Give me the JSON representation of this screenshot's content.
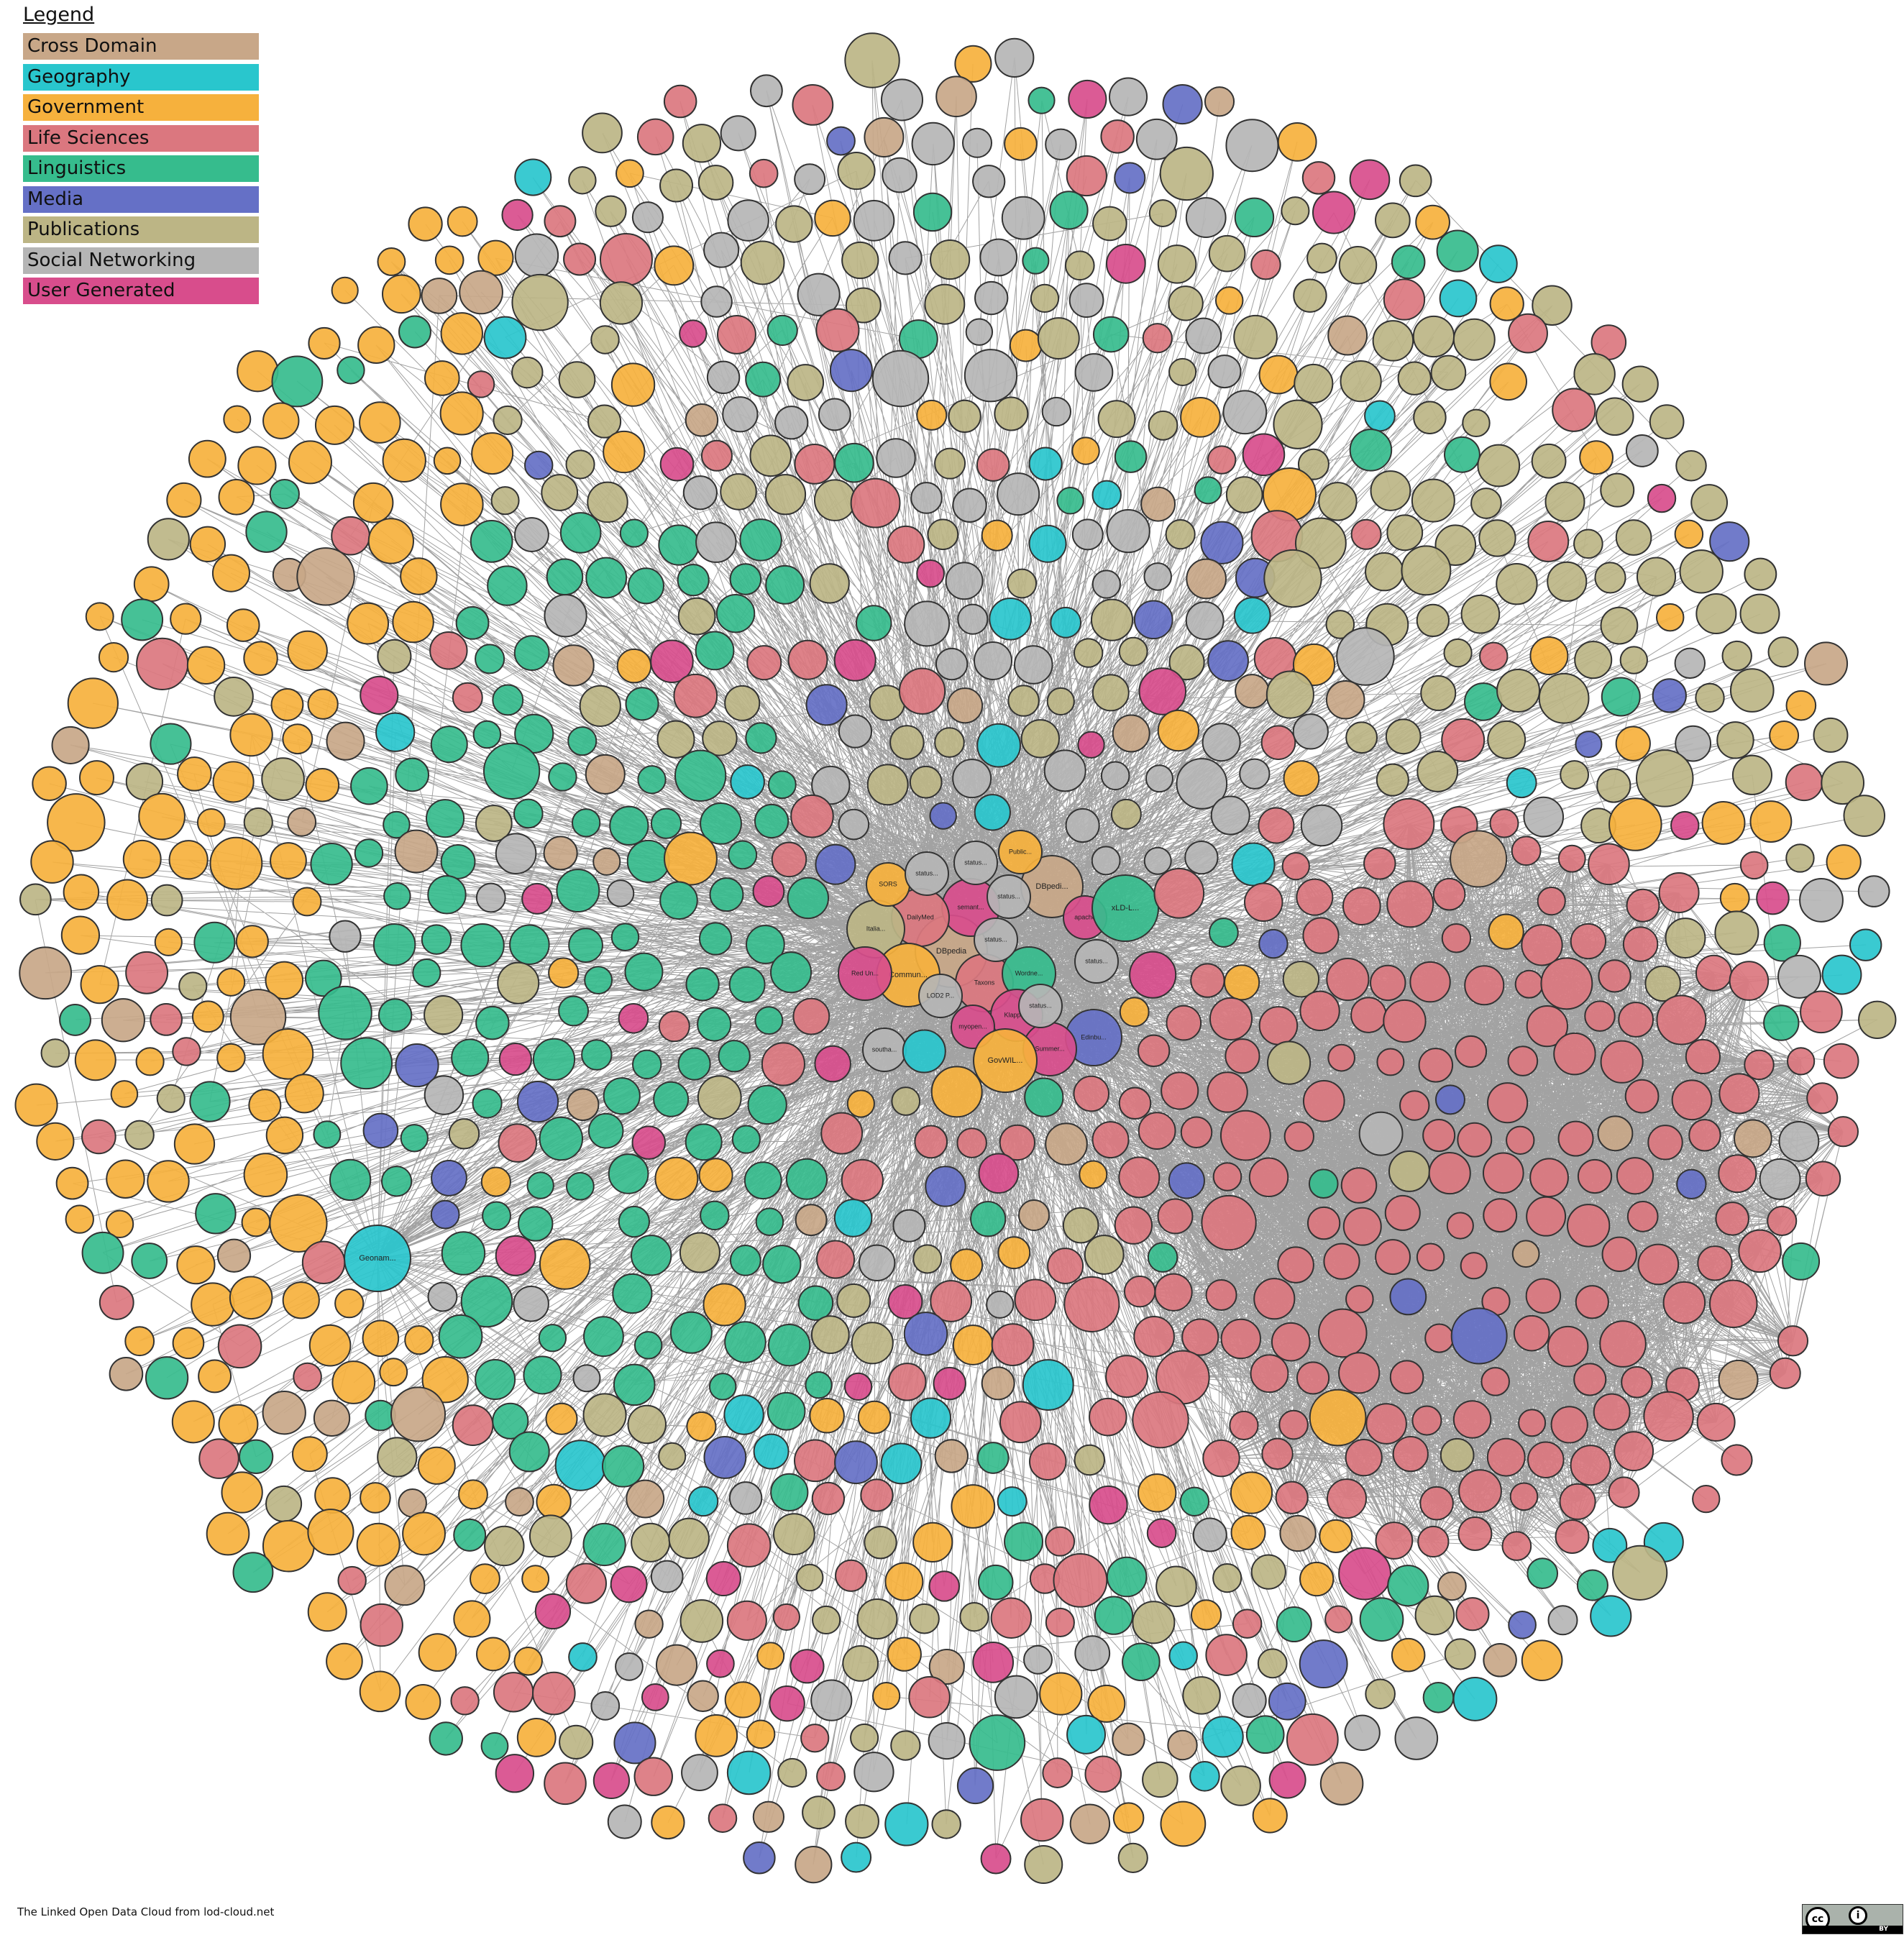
{
  "legend": {
    "title": "Legend",
    "items": [
      {
        "label": "Cross Domain",
        "color": "#c8a788"
      },
      {
        "label": "Geography",
        "color": "#29c6cd"
      },
      {
        "label": "Government",
        "color": "#f6b13d"
      },
      {
        "label": "Life Sciences",
        "color": "#db777f"
      },
      {
        "label": "Linguistics",
        "color": "#36bc8d"
      },
      {
        "label": "Media",
        "color": "#6570c6"
      },
      {
        "label": "Publications",
        "color": "#bcb585"
      },
      {
        "label": "Social Networking",
        "color": "#b5b5b5"
      },
      {
        "label": "User Generated",
        "color": "#d84d8c"
      }
    ]
  },
  "nodes": [
    {
      "label": "DBpedia",
      "category": 0
    },
    {
      "label": "DBpedi...",
      "category": 0
    },
    {
      "label": "semant...",
      "category": 8
    },
    {
      "label": "DailyMed",
      "category": 3
    },
    {
      "label": "Italia...",
      "category": 6
    },
    {
      "label": "Commun...",
      "category": 2
    },
    {
      "label": "Red Un...",
      "category": 8
    },
    {
      "label": "Taxons",
      "category": 3
    },
    {
      "label": "Wordne...",
      "category": 4
    },
    {
      "label": "LOD2 P...",
      "category": 7
    },
    {
      "label": "Klapps...",
      "category": 8
    },
    {
      "label": "myopen...",
      "category": 8
    },
    {
      "label": "Edinbu...",
      "category": 5
    },
    {
      "label": "Summer...",
      "category": 8
    },
    {
      "label": "GovWIL...",
      "category": 2
    },
    {
      "label": "SORS",
      "category": 2
    },
    {
      "label": "apache",
      "category": 8
    },
    {
      "label": "xLD-L...",
      "category": 4
    },
    {
      "label": "Public...",
      "category": 2
    },
    {
      "label": "status...",
      "category": 7
    },
    {
      "label": "status...",
      "category": 7
    },
    {
      "label": "status...",
      "category": 7
    },
    {
      "label": "status...",
      "category": 7
    },
    {
      "label": "status...",
      "category": 7
    },
    {
      "label": "status...",
      "category": 7
    },
    {
      "label": "southa...",
      "category": 7
    },
    {
      "label": "Geonam...",
      "category": 1
    }
  ],
  "footer": "The Linked Open Data Cloud from lod-cloud.net",
  "license": {
    "badge": "CC BY",
    "cc": "cc",
    "by": "BY"
  }
}
